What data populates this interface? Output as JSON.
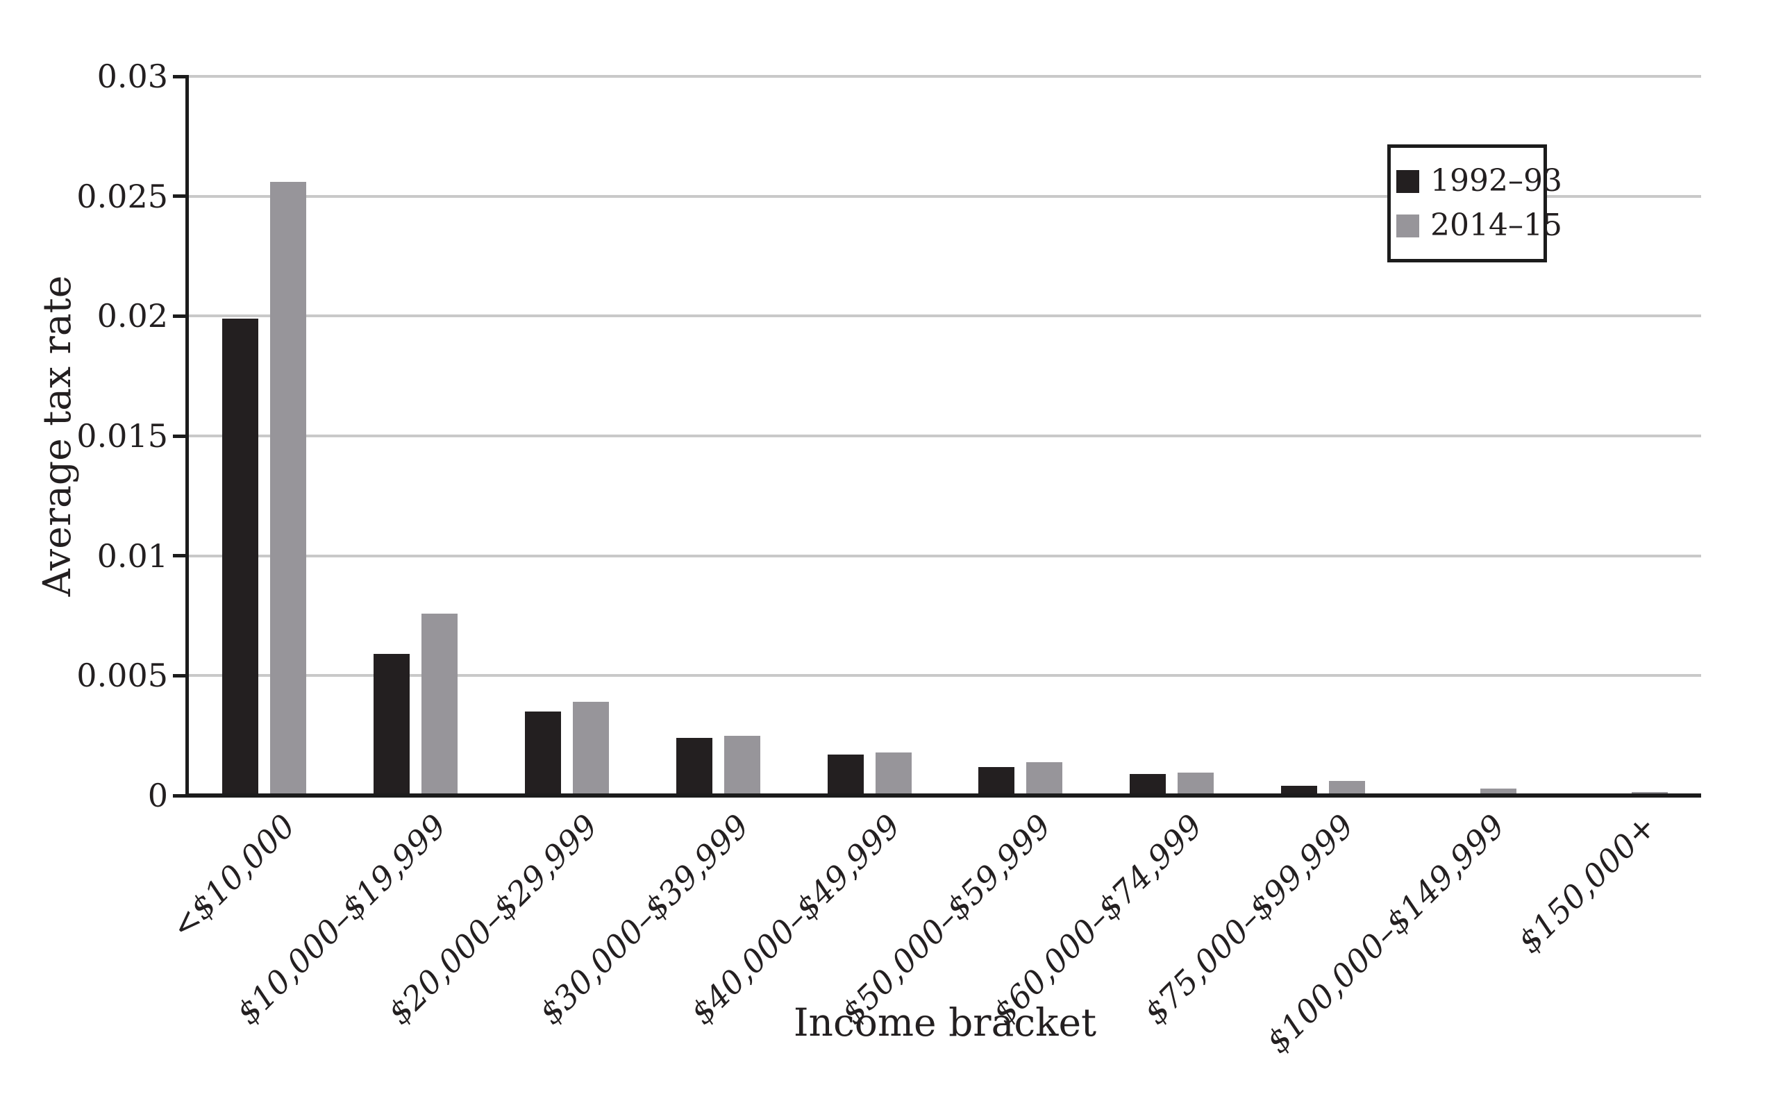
{
  "chart_data": {
    "type": "bar",
    "title": "",
    "xlabel": "Income bracket",
    "ylabel": "Average tax rate",
    "categories": [
      "<$10,000",
      "$10,000–$19,999",
      "$20,000–$29,999",
      "$30,000–$39,999",
      "$40,000–$49,999",
      "$50,000–$59,999",
      "$60,000–$74,999",
      "$75,000–$99,999",
      "$100,000–$149,999",
      "$150,000+"
    ],
    "series": [
      {
        "name": "1992–93",
        "color": "#231f20",
        "values": [
          0.0199,
          0.0059,
          0.0035,
          0.0024,
          0.0017,
          0.0012,
          0.0009,
          0.0004,
          0.0,
          0.0
        ]
      },
      {
        "name": "2014–15",
        "color": "#97959a",
        "values": [
          0.0256,
          0.0076,
          0.0039,
          0.0025,
          0.0018,
          0.0014,
          0.00095,
          0.0006,
          0.0003,
          0.00015
        ]
      }
    ],
    "ylim": [
      0,
      0.03
    ],
    "yticks": [
      0,
      0.005,
      0.01,
      0.015,
      0.02,
      0.025,
      0.03
    ],
    "ytick_labels": [
      "0",
      "0.005",
      "0.01",
      "0.015",
      "0.02",
      "0.025",
      "0.03"
    ],
    "grid": "horizontal-gridlines-on",
    "legend_position": "upper-right",
    "axis_color": "#1c1c1c",
    "gridline_color": "#c9c9c9"
  }
}
